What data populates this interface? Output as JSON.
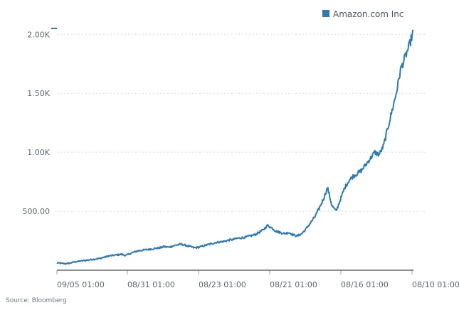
{
  "chart_data": {
    "type": "line",
    "title": "",
    "xlabel": "",
    "ylabel": "",
    "series": [
      {
        "name": "Amazon.com Inc",
        "color": "#2a7bb5",
        "values": [
          62,
          58,
          55,
          60,
          70,
          75,
          80,
          85,
          90,
          95,
          100,
          110,
          120,
          125,
          130,
          135,
          125,
          140,
          155,
          165,
          170,
          175,
          180,
          185,
          190,
          200,
          195,
          205,
          215,
          220,
          210,
          200,
          190,
          195,
          205,
          215,
          225,
          235,
          240,
          245,
          255,
          260,
          270,
          275,
          280,
          290,
          300,
          320,
          340,
          380,
          360,
          330,
          320,
          310,
          320,
          300,
          290,
          310,
          350,
          400,
          450,
          520,
          600,
          700,
          550,
          500,
          600,
          700,
          760,
          800,
          820,
          850,
          900,
          950,
          1000,
          980,
          1050,
          1200,
          1350,
          1500,
          1700,
          1800,
          1900,
          2030
        ]
      }
    ],
    "x_tick_labels": [
      "09/05 01:00",
      "08/31 01:00",
      "08/23 01:00",
      "08/21 01:00",
      "08/16 01:00",
      "08/10 01:00"
    ],
    "y_tick_labels": [
      "500.00",
      "1.00K",
      "1.50K",
      "2.00K"
    ],
    "y_tick_values": [
      500,
      1000,
      1500,
      2000
    ],
    "ylim": [
      0,
      2050
    ],
    "grid": true,
    "legend": {
      "placement": "top-right",
      "label": "Amazon.com Inc"
    },
    "source": "Source: Bloomberg"
  }
}
